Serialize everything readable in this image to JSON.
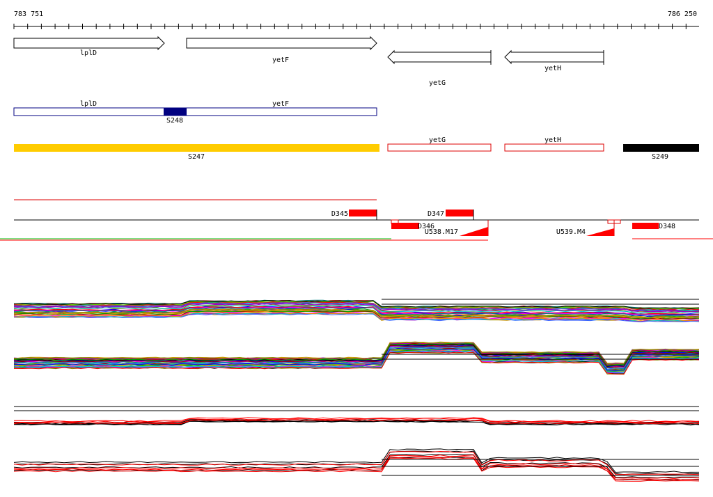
{
  "coords": {
    "start": "783 751",
    "end": "786 250"
  },
  "genes": [
    {
      "name": "lplD",
      "dir": "right"
    },
    {
      "name": "yetF",
      "dir": "right"
    },
    {
      "name": "yetG",
      "dir": "left"
    },
    {
      "name": "yetH",
      "dir": "left"
    }
  ],
  "operon": {
    "label_1": "lplD",
    "label_2": "yetF",
    "segment": "S248"
  },
  "segments": {
    "s247": "S247",
    "yetg": "yetG",
    "yeth": "yetH",
    "s249": "S249"
  },
  "features": {
    "d345": "D345",
    "d347": "D347",
    "d346": "D346",
    "d348": "D348",
    "u538": "U538.M17",
    "u539": "U539.M4"
  },
  "colors": {
    "gene_outline": "#000000",
    "operon_outline": "#000080",
    "s248_fill": "#000080",
    "s247_fill": "#ffcc00",
    "segment_outline": "#dd0000",
    "s249_fill": "#000000",
    "feature_fill": "#ff0000",
    "ruler": "#000000"
  }
}
